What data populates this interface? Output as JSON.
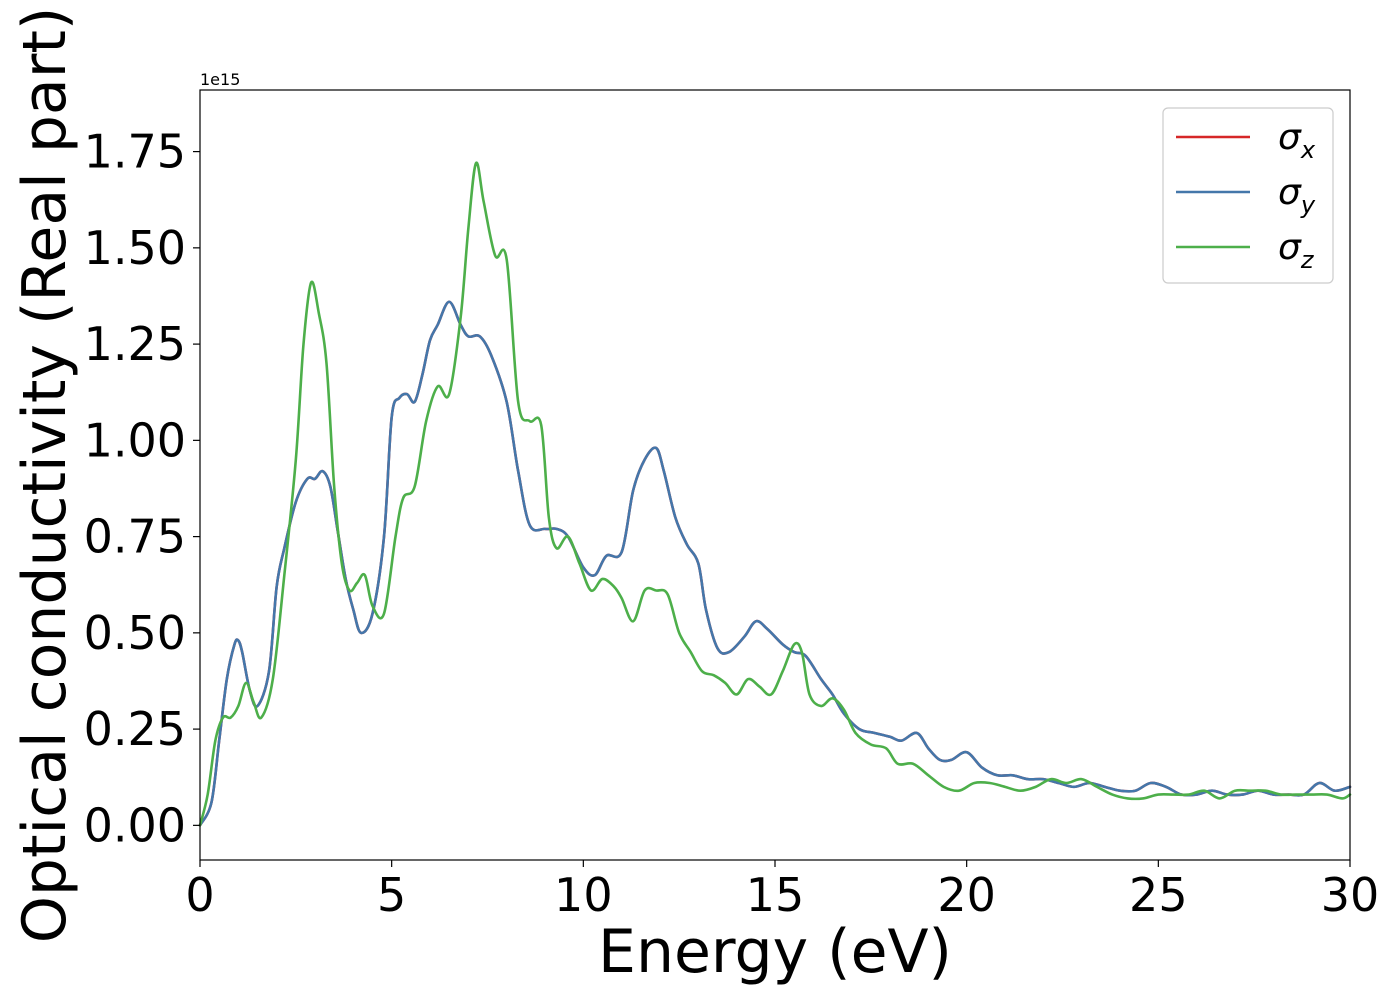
{
  "chart_data": {
    "type": "line",
    "xlabel": "Energy (eV)",
    "ylabel": "Optical conductivity (Real part)",
    "y_exponent_label": "1e15",
    "xlim": [
      0,
      30
    ],
    "ylim": [
      -0.09,
      1.91
    ],
    "y_scale_factor": 1000000000000000.0,
    "xticks": [
      0,
      5,
      10,
      15,
      20,
      25,
      30
    ],
    "xtick_labels": [
      "0",
      "5",
      "10",
      "15",
      "20",
      "25",
      "30"
    ],
    "yticks": [
      0.0,
      0.25,
      0.5,
      0.75,
      1.0,
      1.25,
      1.5,
      1.75
    ],
    "ytick_labels": [
      "0.00",
      "0.25",
      "0.50",
      "0.75",
      "1.00",
      "1.25",
      "1.50",
      "1.75"
    ],
    "grid": false,
    "legend_position": "top-right",
    "series": [
      {
        "name": "σ",
        "subscript": "x",
        "color": "#d62728",
        "x": [
          0,
          0.3,
          0.5,
          0.7,
          0.9,
          1.0,
          1.1,
          1.3,
          1.5,
          1.8,
          2.0,
          2.2,
          2.5,
          2.8,
          3.0,
          3.2,
          3.4,
          3.6,
          3.8,
          4.0,
          4.2,
          4.5,
          4.8,
          5.0,
          5.2,
          5.4,
          5.6,
          5.8,
          6.0,
          6.2,
          6.5,
          6.8,
          7.0,
          7.3,
          7.6,
          8.0,
          8.3,
          8.6,
          9.0,
          9.3,
          9.6,
          10.0,
          10.3,
          10.6,
          11.0,
          11.3,
          11.6,
          11.9,
          12.1,
          12.4,
          12.7,
          13.0,
          13.2,
          13.5,
          13.8,
          14.2,
          14.5,
          14.8,
          15.2,
          15.5,
          15.8,
          16.2,
          16.5,
          16.8,
          17.2,
          17.6,
          18.0,
          18.3,
          18.7,
          19.0,
          19.3,
          19.6,
          20.0,
          20.4,
          20.8,
          21.2,
          21.6,
          22.0,
          22.4,
          22.8,
          23.2,
          23.6,
          24.0,
          24.4,
          24.8,
          25.2,
          25.6,
          26.0,
          26.4,
          26.8,
          27.2,
          27.6,
          28.0,
          28.4,
          28.8,
          29.2,
          29.6,
          30.0
        ],
        "y": [
          0.0,
          0.06,
          0.22,
          0.38,
          0.47,
          0.48,
          0.45,
          0.35,
          0.31,
          0.4,
          0.62,
          0.72,
          0.84,
          0.9,
          0.9,
          0.92,
          0.88,
          0.76,
          0.64,
          0.56,
          0.5,
          0.55,
          0.75,
          1.06,
          1.11,
          1.12,
          1.1,
          1.17,
          1.26,
          1.3,
          1.36,
          1.3,
          1.27,
          1.27,
          1.22,
          1.1,
          0.92,
          0.78,
          0.77,
          0.77,
          0.75,
          0.67,
          0.65,
          0.7,
          0.71,
          0.87,
          0.95,
          0.98,
          0.92,
          0.8,
          0.73,
          0.68,
          0.56,
          0.46,
          0.45,
          0.49,
          0.53,
          0.51,
          0.47,
          0.45,
          0.44,
          0.38,
          0.34,
          0.29,
          0.25,
          0.24,
          0.23,
          0.22,
          0.24,
          0.2,
          0.17,
          0.17,
          0.19,
          0.15,
          0.13,
          0.13,
          0.12,
          0.12,
          0.11,
          0.1,
          0.11,
          0.1,
          0.09,
          0.09,
          0.11,
          0.1,
          0.08,
          0.08,
          0.09,
          0.08,
          0.08,
          0.09,
          0.08,
          0.08,
          0.08,
          0.11,
          0.09,
          0.1
        ]
      },
      {
        "name": "σ",
        "subscript": "y",
        "color": "#4477aa",
        "x": [
          0,
          0.3,
          0.5,
          0.7,
          0.9,
          1.0,
          1.1,
          1.3,
          1.5,
          1.8,
          2.0,
          2.2,
          2.5,
          2.8,
          3.0,
          3.2,
          3.4,
          3.6,
          3.8,
          4.0,
          4.2,
          4.5,
          4.8,
          5.0,
          5.2,
          5.4,
          5.6,
          5.8,
          6.0,
          6.2,
          6.5,
          6.8,
          7.0,
          7.3,
          7.6,
          8.0,
          8.3,
          8.6,
          9.0,
          9.3,
          9.6,
          10.0,
          10.3,
          10.6,
          11.0,
          11.3,
          11.6,
          11.9,
          12.1,
          12.4,
          12.7,
          13.0,
          13.2,
          13.5,
          13.8,
          14.2,
          14.5,
          14.8,
          15.2,
          15.5,
          15.8,
          16.2,
          16.5,
          16.8,
          17.2,
          17.6,
          18.0,
          18.3,
          18.7,
          19.0,
          19.3,
          19.6,
          20.0,
          20.4,
          20.8,
          21.2,
          21.6,
          22.0,
          22.4,
          22.8,
          23.2,
          23.6,
          24.0,
          24.4,
          24.8,
          25.2,
          25.6,
          26.0,
          26.4,
          26.8,
          27.2,
          27.6,
          28.0,
          28.4,
          28.8,
          29.2,
          29.6,
          30.0
        ],
        "y": [
          0.0,
          0.06,
          0.22,
          0.38,
          0.47,
          0.48,
          0.45,
          0.35,
          0.31,
          0.4,
          0.62,
          0.72,
          0.84,
          0.9,
          0.9,
          0.92,
          0.88,
          0.76,
          0.64,
          0.56,
          0.5,
          0.55,
          0.75,
          1.06,
          1.11,
          1.12,
          1.1,
          1.17,
          1.26,
          1.3,
          1.36,
          1.3,
          1.27,
          1.27,
          1.22,
          1.1,
          0.92,
          0.78,
          0.77,
          0.77,
          0.75,
          0.67,
          0.65,
          0.7,
          0.71,
          0.87,
          0.95,
          0.98,
          0.92,
          0.8,
          0.73,
          0.68,
          0.56,
          0.46,
          0.45,
          0.49,
          0.53,
          0.51,
          0.47,
          0.45,
          0.44,
          0.38,
          0.34,
          0.29,
          0.25,
          0.24,
          0.23,
          0.22,
          0.24,
          0.2,
          0.17,
          0.17,
          0.19,
          0.15,
          0.13,
          0.13,
          0.12,
          0.12,
          0.11,
          0.1,
          0.11,
          0.1,
          0.09,
          0.09,
          0.11,
          0.1,
          0.08,
          0.08,
          0.09,
          0.08,
          0.08,
          0.09,
          0.08,
          0.08,
          0.08,
          0.11,
          0.09,
          0.1
        ]
      },
      {
        "name": "σ",
        "subscript": "z",
        "color": "#4daf4a",
        "x": [
          0,
          0.2,
          0.4,
          0.6,
          0.8,
          1.0,
          1.2,
          1.4,
          1.6,
          1.9,
          2.2,
          2.5,
          2.7,
          2.9,
          3.1,
          3.3,
          3.5,
          3.7,
          3.9,
          4.1,
          4.3,
          4.5,
          4.8,
          5.1,
          5.3,
          5.6,
          5.9,
          6.2,
          6.5,
          6.8,
          7.0,
          7.2,
          7.4,
          7.7,
          8.0,
          8.3,
          8.6,
          8.9,
          9.1,
          9.3,
          9.6,
          9.9,
          10.2,
          10.5,
          10.8,
          11.0,
          11.3,
          11.6,
          11.9,
          12.2,
          12.5,
          12.8,
          13.1,
          13.4,
          13.7,
          14.0,
          14.3,
          14.6,
          14.9,
          15.2,
          15.5,
          15.7,
          15.9,
          16.2,
          16.5,
          16.8,
          17.1,
          17.5,
          17.9,
          18.2,
          18.6,
          19.0,
          19.4,
          19.8,
          20.2,
          20.6,
          21.0,
          21.4,
          21.8,
          22.2,
          22.6,
          23.0,
          23.4,
          23.8,
          24.2,
          24.6,
          25.0,
          25.4,
          25.8,
          26.2,
          26.6,
          27.0,
          27.4,
          27.8,
          28.2,
          28.6,
          29.0,
          29.4,
          29.8,
          30.0
        ],
        "y": [
          0.0,
          0.08,
          0.22,
          0.28,
          0.28,
          0.31,
          0.37,
          0.32,
          0.28,
          0.38,
          0.65,
          0.95,
          1.25,
          1.41,
          1.33,
          1.2,
          0.88,
          0.68,
          0.61,
          0.63,
          0.65,
          0.57,
          0.55,
          0.75,
          0.85,
          0.88,
          1.05,
          1.14,
          1.12,
          1.32,
          1.55,
          1.72,
          1.62,
          1.48,
          1.47,
          1.1,
          1.05,
          1.04,
          0.8,
          0.72,
          0.75,
          0.68,
          0.61,
          0.64,
          0.62,
          0.59,
          0.53,
          0.61,
          0.61,
          0.6,
          0.5,
          0.45,
          0.4,
          0.39,
          0.37,
          0.34,
          0.38,
          0.36,
          0.34,
          0.4,
          0.47,
          0.45,
          0.34,
          0.31,
          0.33,
          0.3,
          0.24,
          0.21,
          0.2,
          0.16,
          0.16,
          0.13,
          0.1,
          0.09,
          0.11,
          0.11,
          0.1,
          0.09,
          0.1,
          0.12,
          0.11,
          0.12,
          0.1,
          0.08,
          0.07,
          0.07,
          0.08,
          0.08,
          0.08,
          0.09,
          0.07,
          0.09,
          0.09,
          0.09,
          0.08,
          0.08,
          0.08,
          0.08,
          0.07,
          0.08
        ]
      }
    ]
  }
}
